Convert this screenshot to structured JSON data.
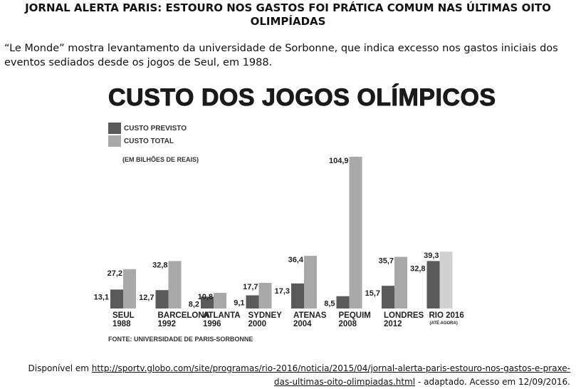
{
  "headline": "JORNAL ALERTA PARIS: ESTOURO NOS GASTOS FOI PRÁTICA COMUM NAS ÚLTIMAS OITO OLIMPÍADAS",
  "intro": "“Le Monde” mostra levantamento da universidade de Sorbonne, que indica excesso nos gastos iniciais dos eventos sediados desde os jogos de Seul, em 1988.",
  "citation": {
    "prefix": "Disponível em ",
    "link": "http://sportv.globo.com/site/programas/rio-2016/noticia/2015/04/jornal-alerta-paris-estouro-nos-gastos-e-praxe-das-ultimas-oito-olimpiadas.html",
    "suffix": " - adaptado. Acesso em 12/09/2016."
  },
  "chart_data": {
    "type": "bar",
    "title": "CUSTO DOS JOGOS OLÍMPICOS",
    "unit_note": "(EM BILHÕES DE REAIS)",
    "source": "FONTE: UNIVERSIDADE DE PARIS-SORBONNE",
    "legend_position": "top-left",
    "grid": false,
    "categories": [
      {
        "name": "SEUL",
        "year": "1988",
        "note": ""
      },
      {
        "name": "BARCELONA",
        "year": "1992",
        "note": ""
      },
      {
        "name": "ATLANTA",
        "year": "1996",
        "note": ""
      },
      {
        "name": "SYDNEY",
        "year": "2000",
        "note": ""
      },
      {
        "name": "ATENAS",
        "year": "2004",
        "note": ""
      },
      {
        "name": "PEQUIM",
        "year": "2008",
        "note": ""
      },
      {
        "name": "LONDRES",
        "year": "2012",
        "note": ""
      },
      {
        "name": "RIO 2016",
        "year": "",
        "note": "(ATÉ AGORA)"
      }
    ],
    "series": [
      {
        "name": "CUSTO PREVISTO",
        "color": "#5a5a5a",
        "values": [
          13.1,
          12.7,
          8.2,
          9.1,
          17.3,
          8.5,
          15.7,
          32.8
        ],
        "labels": [
          "13,1",
          "12,7",
          "8,2",
          "9,1",
          "17,3",
          "8,5",
          "15,7",
          "32,8"
        ]
      },
      {
        "name": "CUSTO TOTAL",
        "color": "#a9a9a9",
        "values": [
          27.2,
          32.8,
          10.8,
          17.7,
          36.4,
          104.9,
          35.7,
          39.3
        ],
        "labels": [
          "27,2",
          "32,8",
          "10,8",
          "17,7",
          "36,4",
          "104,9",
          "35,7",
          "39,3"
        ]
      }
    ],
    "ylim": [
      0,
      104.9
    ]
  }
}
